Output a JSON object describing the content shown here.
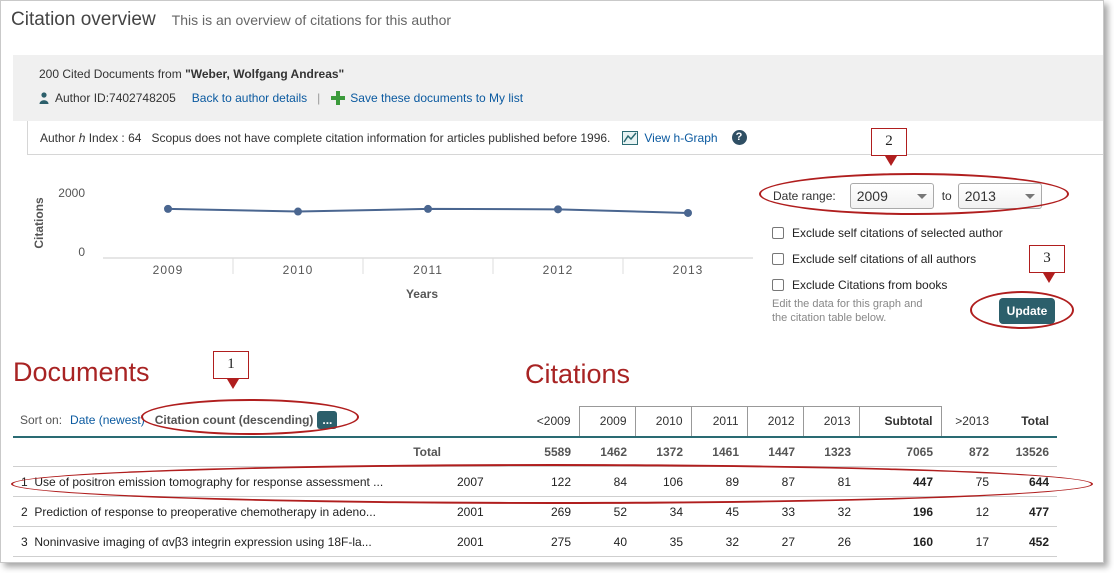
{
  "header": {
    "title": "Citation overview",
    "subtitle": "This is an overview of citations for this author"
  },
  "info": {
    "count_text": "200 Cited Documents from ",
    "author_name": "\"Weber, Wolfgang Andreas\"",
    "author_id": "Author ID:7402748205",
    "back_link": "Back to author details",
    "save_link": "Save these documents to My list"
  },
  "hindex": {
    "label_prefix": "Author ",
    "label_h": "h",
    "label_suffix": " Index : 64",
    "note": "Scopus does not have complete citation information for articles published before 1996.",
    "graph_link": "View h-Graph",
    "help": "?"
  },
  "chart_data": {
    "type": "line",
    "categories": [
      "2009",
      "2010",
      "2011",
      "2012",
      "2013"
    ],
    "series": [
      {
        "values": [
          1462,
          1372,
          1461,
          1447,
          1323
        ]
      }
    ],
    "xlabel": "Years",
    "ylabel": "Citations",
    "yticks": [
      "2000",
      "0"
    ],
    "ylim": [
      0,
      2000
    ],
    "color": "#4a6690"
  },
  "controls": {
    "date_range_label": "Date range:",
    "from_year": "2009",
    "to_label": "to",
    "to_year": "2013",
    "checks": [
      "Exclude self citations of selected author",
      "Exclude self citations of all authors",
      "Exclude Citations from books"
    ],
    "edit_note_1": "Edit the data for this graph and",
    "edit_note_2": "the citation table below.",
    "update_label": "Update"
  },
  "annotations": {
    "documents": "Documents",
    "citations": "Citations",
    "callouts": [
      "1",
      "2",
      "3"
    ]
  },
  "sort": {
    "label": "Sort on:",
    "option_date": "Date (newest)",
    "option_active": "Citation count (descending)",
    "more": "..."
  },
  "table": {
    "headers": [
      "<2009",
      "2009",
      "2010",
      "2011",
      "2012",
      "2013",
      "Subtotal",
      ">2013",
      "Total"
    ],
    "total_row": {
      "label": "Total",
      "values": [
        "5589",
        "1462",
        "1372",
        "1461",
        "1447",
        "1323",
        "7065",
        "872",
        "13526"
      ]
    },
    "rows": [
      {
        "num": "1",
        "title": "Use of positron emission tomography for response assessment ...",
        "year": "2007",
        "values": [
          "122",
          "84",
          "106",
          "89",
          "87",
          "81",
          "447",
          "75",
          "644"
        ]
      },
      {
        "num": "2",
        "title": "Prediction of response to preoperative chemotherapy in adeno...",
        "year": "2001",
        "values": [
          "269",
          "52",
          "34",
          "45",
          "33",
          "32",
          "196",
          "12",
          "477"
        ]
      },
      {
        "num": "3",
        "title": "Noninvasive imaging of αvβ3 integrin expression using 18F-la...",
        "year": "2001",
        "values": [
          "275",
          "40",
          "35",
          "32",
          "27",
          "26",
          "160",
          "17",
          "452"
        ]
      }
    ]
  }
}
